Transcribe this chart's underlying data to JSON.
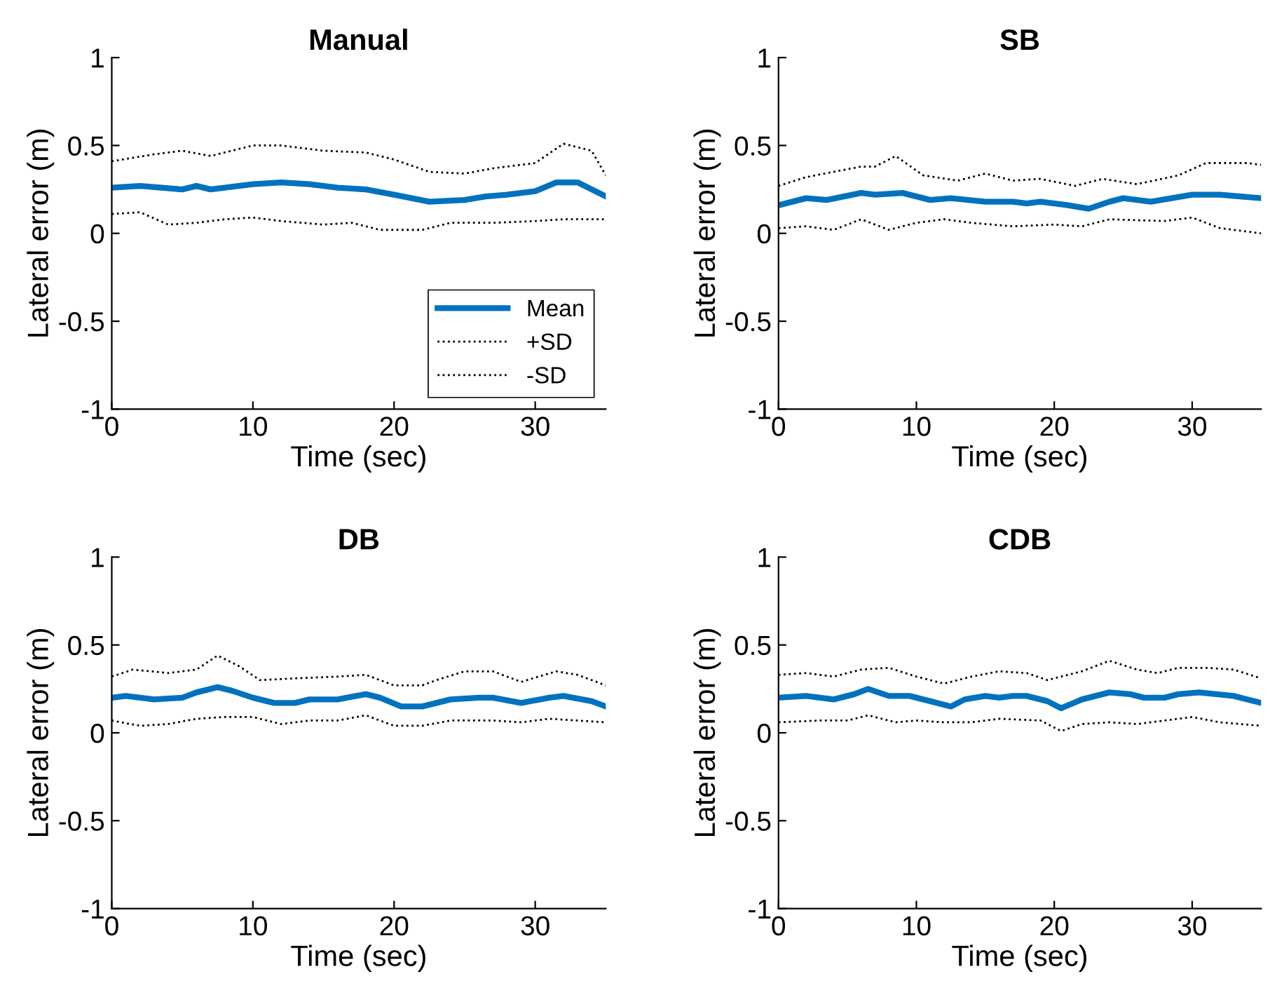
{
  "chart_data": [
    {
      "type": "line",
      "title": "Manual",
      "xlabel": "Time (sec)",
      "ylabel": "Lateral error (m)",
      "xlim": [
        0,
        35
      ],
      "xticks": [
        0,
        10,
        20,
        30
      ],
      "ylim": [
        -1,
        1
      ],
      "yticks": [
        -1,
        -0.5,
        0,
        0.5,
        1
      ],
      "legend": "bottom right",
      "grid": false,
      "series": [
        {
          "name": "Mean",
          "color": "#0072bd",
          "line_style": "solid",
          "x": [
            0,
            2,
            5,
            6,
            7,
            10,
            12,
            14,
            16,
            18,
            20,
            22.5,
            25,
            26.5,
            28,
            30,
            31.5,
            33,
            35
          ],
          "values": [
            0.26,
            0.27,
            0.25,
            0.27,
            0.25,
            0.28,
            0.29,
            0.28,
            0.26,
            0.25,
            0.22,
            0.18,
            0.19,
            0.21,
            0.22,
            0.24,
            0.29,
            0.29,
            0.21
          ]
        },
        {
          "name": "+SD",
          "color": "#000000",
          "line_style": "dotted",
          "x": [
            0,
            3,
            5,
            7,
            10,
            12,
            15,
            18,
            20,
            22.5,
            25,
            27,
            30,
            32,
            34,
            35
          ],
          "values": [
            0.41,
            0.45,
            0.47,
            0.44,
            0.5,
            0.5,
            0.47,
            0.46,
            0.42,
            0.35,
            0.34,
            0.37,
            0.4,
            0.51,
            0.47,
            0.33
          ]
        },
        {
          "name": "-SD",
          "color": "#000000",
          "line_style": "dotted",
          "x": [
            0,
            2,
            4,
            6,
            8,
            10,
            12,
            15,
            17,
            19,
            22,
            24,
            27,
            30,
            32,
            35
          ],
          "values": [
            0.11,
            0.12,
            0.05,
            0.06,
            0.08,
            0.09,
            0.07,
            0.05,
            0.06,
            0.02,
            0.02,
            0.06,
            0.06,
            0.07,
            0.08,
            0.08
          ]
        }
      ]
    },
    {
      "type": "line",
      "title": "SB",
      "xlabel": "Time (sec)",
      "ylabel": "Lateral error (m)",
      "xlim": [
        0,
        35
      ],
      "xticks": [
        0,
        10,
        20,
        30
      ],
      "ylim": [
        -1,
        1
      ],
      "yticks": [
        -1,
        -0.5,
        0,
        0.5,
        1
      ],
      "grid": false,
      "series": [
        {
          "color": "#0072bd",
          "line_style": "solid",
          "x": [
            0,
            2,
            3.5,
            6,
            7,
            9,
            11,
            12.5,
            15,
            17,
            18,
            19,
            21,
            22.5,
            24,
            25,
            27,
            28.5,
            30,
            32,
            35
          ],
          "values": [
            0.16,
            0.2,
            0.19,
            0.23,
            0.22,
            0.23,
            0.19,
            0.2,
            0.18,
            0.18,
            0.17,
            0.18,
            0.16,
            0.14,
            0.18,
            0.2,
            0.18,
            0.2,
            0.22,
            0.22,
            0.2
          ]
        },
        {
          "color": "#000000",
          "line_style": "dotted",
          "x": [
            0,
            2,
            4,
            6,
            7,
            8.5,
            10.5,
            13,
            15,
            17,
            19,
            21.5,
            23.5,
            26,
            29,
            31,
            34,
            35
          ],
          "values": [
            0.27,
            0.32,
            0.35,
            0.38,
            0.38,
            0.44,
            0.33,
            0.3,
            0.34,
            0.3,
            0.31,
            0.27,
            0.31,
            0.28,
            0.33,
            0.4,
            0.4,
            0.39
          ]
        },
        {
          "color": "#000000",
          "line_style": "dotted",
          "x": [
            0,
            2,
            4,
            6,
            8,
            10,
            12,
            14,
            17,
            20,
            22,
            24,
            28,
            30,
            32,
            35
          ],
          "values": [
            0.03,
            0.04,
            0.02,
            0.08,
            0.02,
            0.06,
            0.08,
            0.06,
            0.04,
            0.05,
            0.04,
            0.08,
            0.07,
            0.09,
            0.03,
            0.0
          ]
        }
      ]
    },
    {
      "type": "line",
      "title": "DB",
      "xlabel": "Time (sec)",
      "ylabel": "Lateral error (m)",
      "xlim": [
        0,
        35
      ],
      "xticks": [
        0,
        10,
        20,
        30
      ],
      "ylim": [
        -1,
        1
      ],
      "yticks": [
        -1,
        -0.5,
        0,
        0.5,
        1
      ],
      "grid": false,
      "series": [
        {
          "color": "#0072bd",
          "line_style": "solid",
          "x": [
            0,
            1,
            3,
            5,
            6,
            7.5,
            8.5,
            10,
            11.5,
            13,
            14,
            16,
            18,
            19,
            20.5,
            22,
            24,
            26,
            27,
            29,
            31,
            32,
            34,
            35
          ],
          "values": [
            0.2,
            0.21,
            0.19,
            0.2,
            0.23,
            0.26,
            0.24,
            0.2,
            0.17,
            0.17,
            0.19,
            0.19,
            0.22,
            0.2,
            0.15,
            0.15,
            0.19,
            0.2,
            0.2,
            0.17,
            0.2,
            0.21,
            0.18,
            0.15
          ]
        },
        {
          "color": "#000000",
          "line_style": "dotted",
          "x": [
            0,
            1.5,
            4,
            6,
            7.5,
            9,
            10.5,
            13,
            16,
            18,
            20,
            22,
            23,
            25,
            27,
            29,
            31.5,
            33,
            35
          ],
          "values": [
            0.32,
            0.36,
            0.34,
            0.36,
            0.44,
            0.38,
            0.3,
            0.31,
            0.32,
            0.33,
            0.27,
            0.27,
            0.3,
            0.35,
            0.35,
            0.29,
            0.35,
            0.33,
            0.27
          ]
        },
        {
          "color": "#000000",
          "line_style": "dotted",
          "x": [
            0,
            2,
            4,
            6,
            8,
            10,
            12,
            14,
            16,
            18,
            20,
            22,
            24,
            27,
            29,
            31,
            33,
            35
          ],
          "values": [
            0.07,
            0.04,
            0.05,
            0.08,
            0.09,
            0.09,
            0.05,
            0.07,
            0.07,
            0.1,
            0.04,
            0.04,
            0.07,
            0.07,
            0.06,
            0.08,
            0.07,
            0.06
          ]
        }
      ]
    },
    {
      "type": "line",
      "title": "CDB",
      "xlabel": "Time (sec)",
      "ylabel": "Lateral error (m)",
      "xlim": [
        0,
        35
      ],
      "xticks": [
        0,
        10,
        20,
        30
      ],
      "ylim": [
        -1,
        1
      ],
      "yticks": [
        -1,
        -0.5,
        0,
        0.5,
        1
      ],
      "grid": false,
      "series": [
        {
          "color": "#0072bd",
          "line_style": "solid",
          "x": [
            0,
            2,
            4,
            5.5,
            6.5,
            8,
            9.5,
            11,
            12.5,
            13.5,
            15,
            16,
            17,
            18,
            19.5,
            20.5,
            22,
            24,
            25.5,
            26.5,
            28,
            29,
            30.5,
            33,
            35
          ],
          "values": [
            0.2,
            0.21,
            0.19,
            0.22,
            0.25,
            0.21,
            0.21,
            0.18,
            0.15,
            0.19,
            0.21,
            0.2,
            0.21,
            0.21,
            0.18,
            0.14,
            0.19,
            0.23,
            0.22,
            0.2,
            0.2,
            0.22,
            0.23,
            0.21,
            0.17
          ]
        },
        {
          "color": "#000000",
          "line_style": "dotted",
          "x": [
            0,
            2,
            4,
            6,
            8,
            10,
            12,
            14,
            16,
            18,
            19.5,
            22,
            24,
            26,
            27.5,
            29,
            31,
            33,
            35
          ],
          "values": [
            0.33,
            0.34,
            0.32,
            0.36,
            0.37,
            0.32,
            0.28,
            0.32,
            0.35,
            0.34,
            0.3,
            0.35,
            0.41,
            0.36,
            0.34,
            0.37,
            0.37,
            0.36,
            0.31
          ]
        },
        {
          "color": "#000000",
          "line_style": "dotted",
          "x": [
            0,
            3,
            5,
            6.5,
            8.5,
            10,
            12,
            14,
            16,
            19,
            20.5,
            22,
            24,
            26,
            28,
            30,
            32,
            35
          ],
          "values": [
            0.06,
            0.07,
            0.07,
            0.1,
            0.06,
            0.07,
            0.06,
            0.06,
            0.08,
            0.07,
            0.01,
            0.05,
            0.06,
            0.05,
            0.07,
            0.09,
            0.06,
            0.04
          ]
        }
      ]
    }
  ]
}
